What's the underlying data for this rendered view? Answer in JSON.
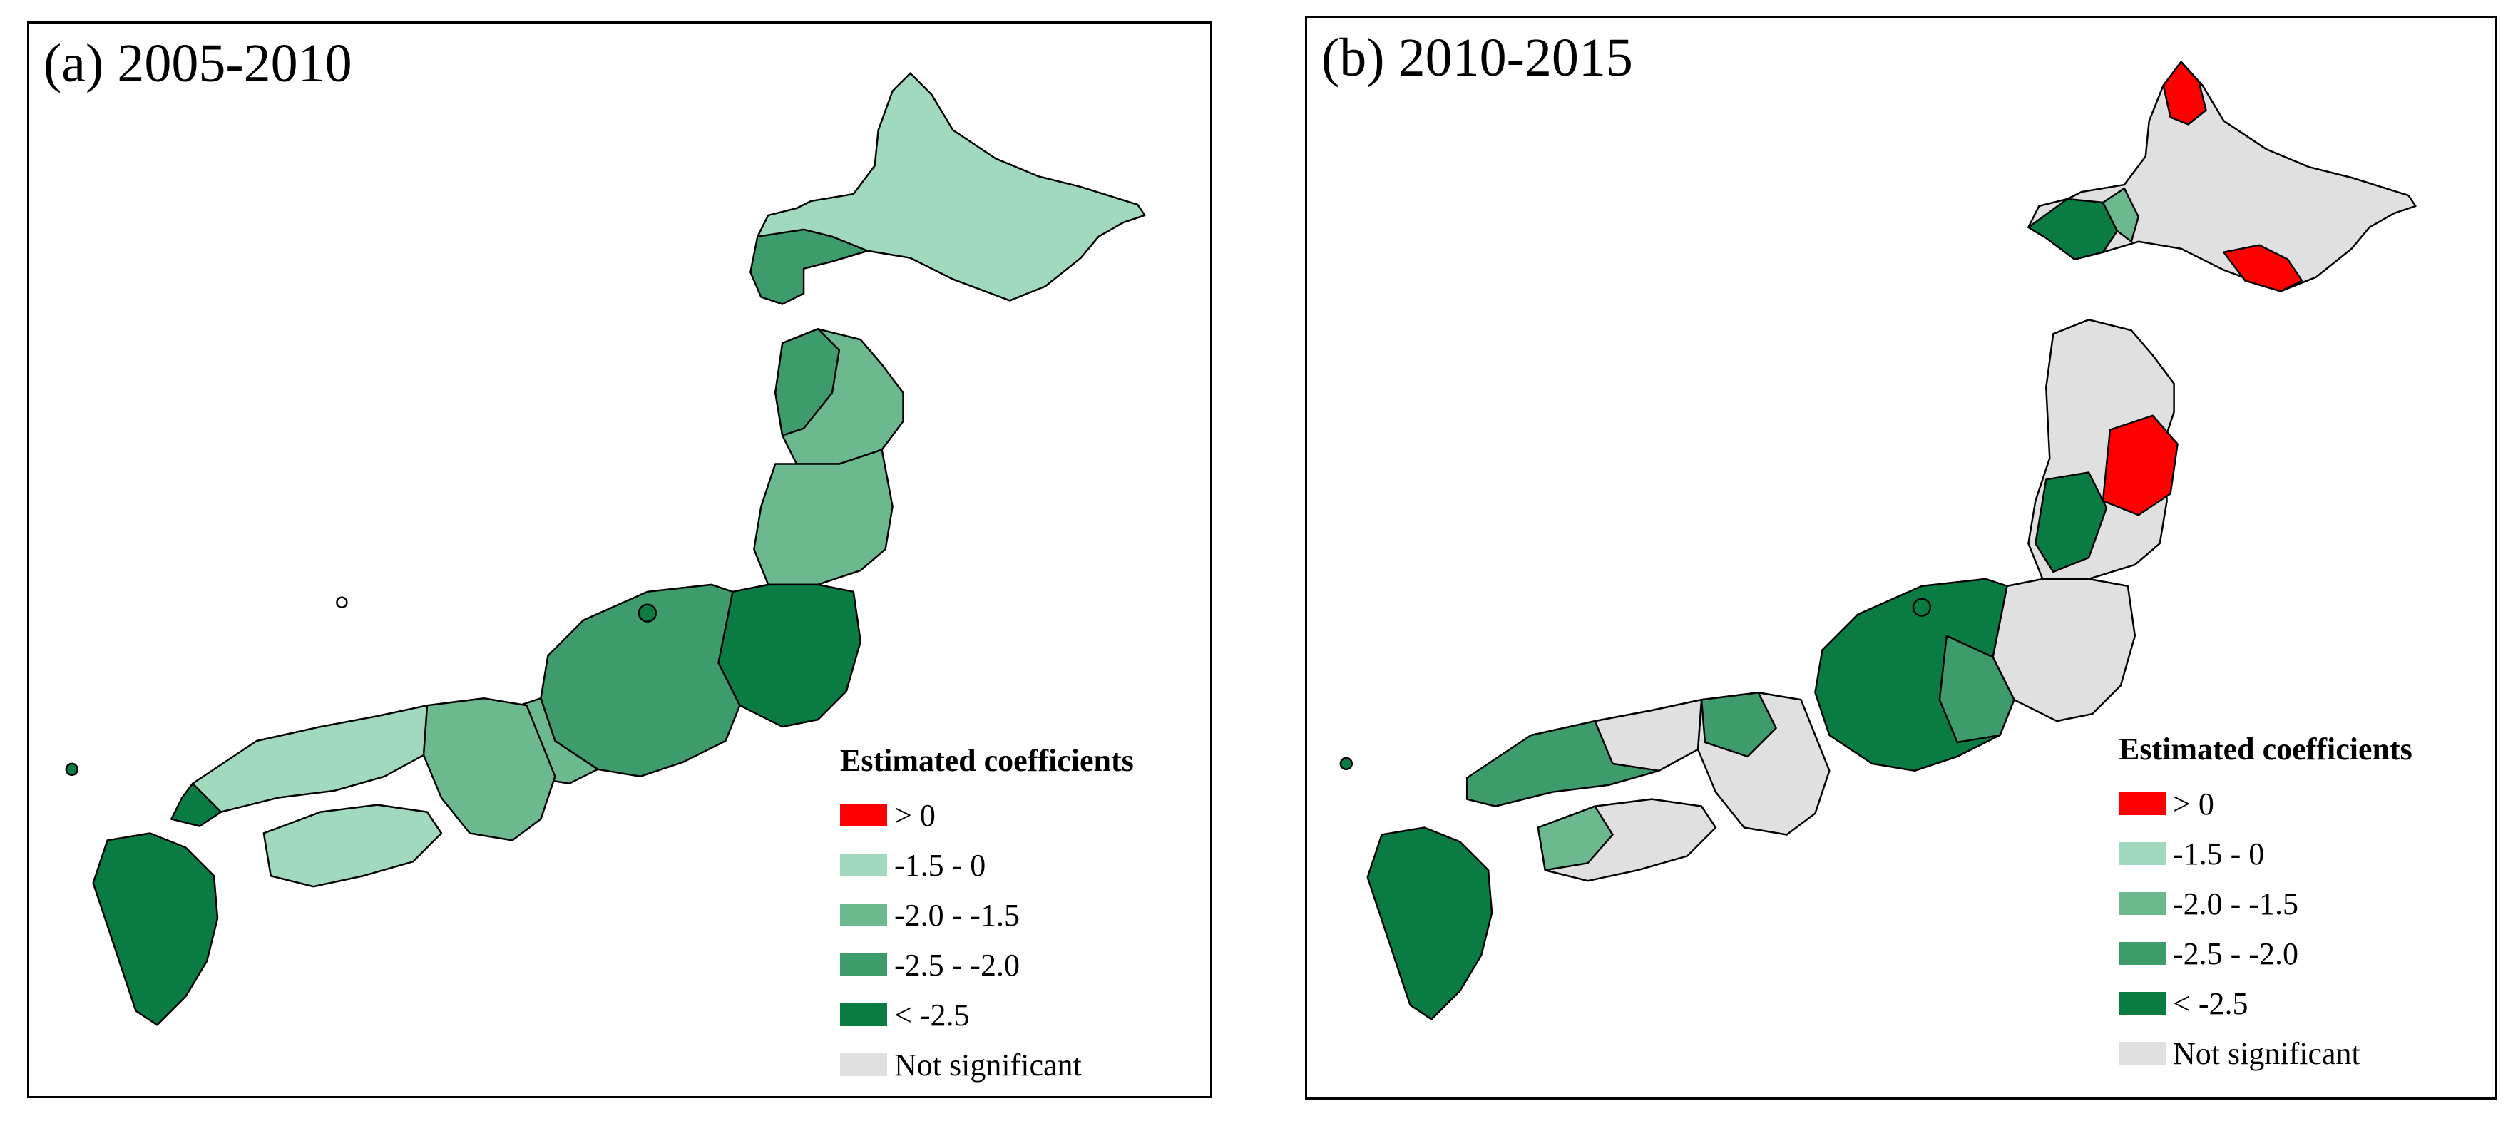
{
  "colors": {
    "pos": "#ff0000",
    "c1": "#a1d9bf",
    "c2": "#6cb88f",
    "c3": "#3d9b6c",
    "c4": "#0a7c43",
    "ns": "#e0e0e0",
    "border": "#000000",
    "subborder": "#808080"
  },
  "panels": [
    {
      "title": "(a) 2005-2010",
      "legend_title": "Estimated coefficients",
      "legend": [
        {
          "label": "> 0",
          "color": "#ff0000"
        },
        {
          "label": "-1.5 - 0",
          "color": "#a1d9bf"
        },
        {
          "label": "-2.0 - -1.5",
          "color": "#6cb88f"
        },
        {
          "label": "-2.5 - -2.0",
          "color": "#3d9b6c"
        },
        {
          "label": "< -2.5",
          "color": "#0a7c43"
        },
        {
          "label": "Not significant",
          "color": "#e0e0e0"
        }
      ]
    },
    {
      "title": "(b) 2010-2015",
      "legend_title": "Estimated coefficients",
      "legend": [
        {
          "label": "> 0",
          "color": "#ff0000"
        },
        {
          "label": "-1.5 - 0",
          "color": "#a1d9bf"
        },
        {
          "label": "-2.0 - -1.5",
          "color": "#6cb88f"
        },
        {
          "label": "-2.5 - -2.0",
          "color": "#3d9b6c"
        },
        {
          "label": "< -2.5",
          "color": "#0a7c43"
        },
        {
          "label": "Not significant",
          "color": "#e0e0e0"
        }
      ]
    }
  ]
}
